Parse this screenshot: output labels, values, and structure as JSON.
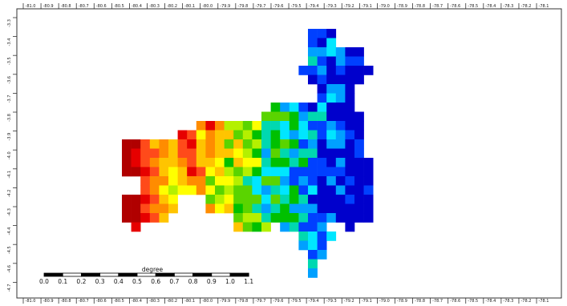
{
  "map": {
    "top_ticks": [
      "-81.0",
      "-80.9",
      "-80.8",
      "-80.7",
      "-80.6",
      "-80.5",
      "-80.4",
      "-80.3",
      "-80.2",
      "-80.1",
      "-80.0",
      "-79.9",
      "-79.8",
      "-79.7",
      "-79.6",
      "-79.5",
      "-79.4",
      "-79.3",
      "-79.2",
      "-79.1",
      "-79.0",
      "-78.9",
      "-78.8",
      "-78.7",
      "-78.6",
      "-78.5",
      "-78.4",
      "-78.3",
      "-78.2",
      "-78.1"
    ],
    "bottom_ticks": [
      "-81.0",
      "-80.9",
      "-80.8",
      "-80.7",
      "-80.6",
      "-80.5",
      "-80.4",
      "-80.3",
      "-80.2",
      "-80.1",
      "-80.0",
      "-79.9",
      "-79.8",
      "-79.7",
      "-79.6",
      "-79.5",
      "-79.4",
      "-79.3",
      "-79.2",
      "-79.1",
      "-79.0",
      "-78.9",
      "-78.8",
      "-78.7",
      "-78.6",
      "-78.5",
      "-78.4",
      "-78.3",
      "-78.2",
      "-78.1"
    ],
    "left_ticks": [
      "-3.3",
      "-3.4",
      "-3.5",
      "-3.6",
      "-3.7",
      "-3.8",
      "-3.9",
      "-4.0",
      "-4.1",
      "-4.2",
      "-4.3",
      "-4.4",
      "-4.5",
      "-4.6",
      "-4.7"
    ],
    "scalebar": {
      "title": "degree",
      "labels": [
        "0.0",
        "0.1",
        "0.2",
        "0.3",
        "0.4",
        "0.5",
        "0.6",
        "0.7",
        "0.8",
        "0.9",
        "1.0",
        "1.1"
      ]
    },
    "palette": [
      "#b00000",
      "#e60000",
      "#ff4a1a",
      "#ff8c00",
      "#ffc400",
      "#ffff00",
      "#b4f000",
      "#5ad400",
      "#00c000",
      "#00d8b0",
      "#00e6ff",
      "#00a0ff",
      "#0040ff",
      "#0000cc",
      "#6a0dad"
    ]
  }
}
